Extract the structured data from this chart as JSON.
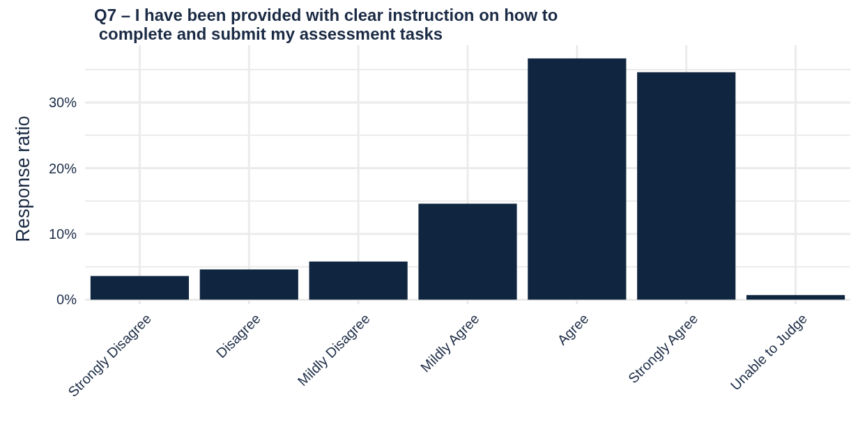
{
  "chart_data": {
    "type": "bar",
    "title": "Q7 – I have been provided with clear instruction on how to\n complete and submit my assessment tasks",
    "ylabel": "Response ratio",
    "categories": [
      "Strongly Disagree",
      "Disagree",
      "Mildly Disagree",
      "Mildly Agree",
      "Agree",
      "Strongly Agree",
      "Unable to Judge"
    ],
    "values": [
      3.6,
      4.6,
      5.8,
      14.6,
      36.7,
      34.6,
      0.7
    ],
    "color": "#10253f",
    "ylim": [
      -0.7,
      38.7
    ],
    "yticks": [
      {
        "value": 0,
        "label": "0%"
      },
      {
        "value": 5,
        "label": null
      },
      {
        "value": 10,
        "label": "10%"
      },
      {
        "value": 15,
        "label": null
      },
      {
        "value": 20,
        "label": "20%"
      },
      {
        "value": 25,
        "label": null
      },
      {
        "value": 30,
        "label": "30%"
      },
      {
        "value": 35,
        "label": null
      }
    ],
    "grid": true
  }
}
